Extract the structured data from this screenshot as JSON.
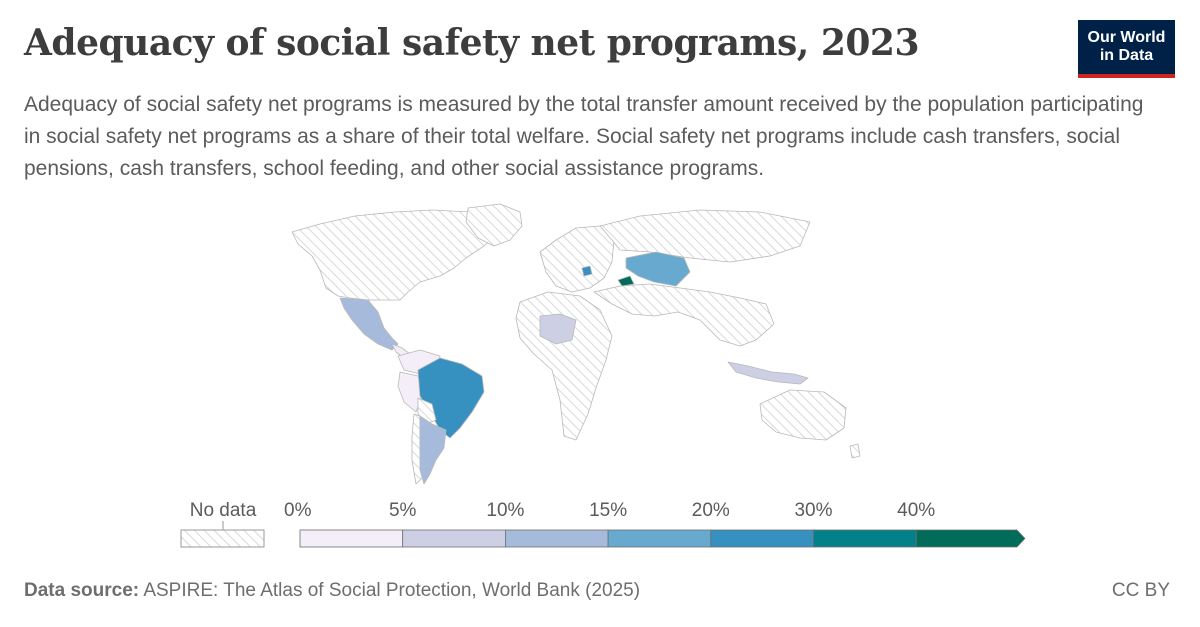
{
  "header": {
    "title": "Adequacy of social safety net programs, 2023",
    "subtitle": "Adequacy of social safety net programs is measured by the total transfer amount received by the population participating in social safety net programs as a share of their total welfare. Social safety net programs include cash transfers, social pensions, cash transfers, school feeding, and other social assistance programs.",
    "logo_line1": "Our World",
    "logo_line2": "in Data"
  },
  "legend": {
    "no_data_label": "No data",
    "bins": [
      {
        "from": "0%",
        "color": "#f3eef7"
      },
      {
        "from": "5%",
        "color": "#cdd0e4"
      },
      {
        "from": "10%",
        "color": "#a6bbdb"
      },
      {
        "from": "15%",
        "color": "#67a9cf"
      },
      {
        "from": "20%",
        "color": "#3690c0"
      },
      {
        "from": "30%",
        "color": "#02818a"
      },
      {
        "from": "40%",
        "color": "#016c59"
      }
    ]
  },
  "regions": [
    {
      "name": "Mexico",
      "value_bin": "10%",
      "color": "#a6bbdb"
    },
    {
      "name": "Brazil",
      "value_bin": "20%",
      "color": "#3690c0"
    },
    {
      "name": "Argentina",
      "value_bin": "10%",
      "color": "#a6bbdb"
    },
    {
      "name": "Kazakhstan",
      "value_bin": "15%",
      "color": "#67a9cf"
    },
    {
      "name": "Georgia",
      "value_bin": "40%",
      "color": "#016c59"
    },
    {
      "name": "Indonesia",
      "value_bin": "5%",
      "color": "#cdd0e4"
    },
    {
      "name": "Niger",
      "value_bin": "5%",
      "color": "#cdd0e4"
    },
    {
      "name": "Peru",
      "value_bin": "0%",
      "color": "#f3eef7"
    }
  ],
  "footer": {
    "source_label": "Data source:",
    "source_text": " ASPIRE: The Atlas of Social Protection, World Bank (2025)",
    "license": "CC BY"
  }
}
